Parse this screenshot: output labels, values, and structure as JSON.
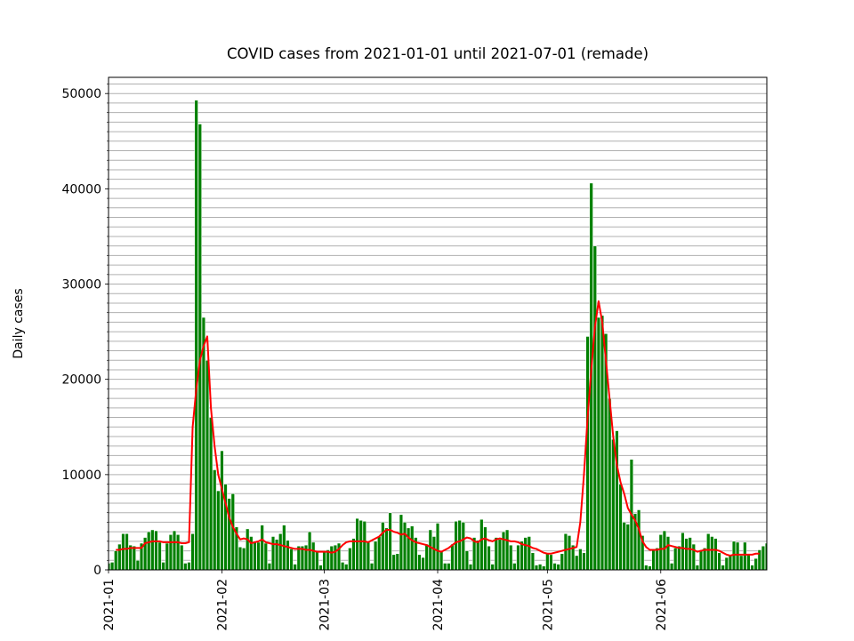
{
  "chart_data": {
    "type": "bar",
    "title": "COVID cases from 2021-01-01 until 2021-07-01 (remade)",
    "y_label": "Daily cases",
    "x": [
      "2021-01-01",
      "2021-01-02",
      "2021-01-03",
      "2021-01-04",
      "2021-01-05",
      "2021-01-06",
      "2021-01-07",
      "2021-01-08",
      "2021-01-09",
      "2021-01-10",
      "2021-01-11",
      "2021-01-12",
      "2021-01-13",
      "2021-01-14",
      "2021-01-15",
      "2021-01-16",
      "2021-01-17",
      "2021-01-18",
      "2021-01-19",
      "2021-01-20",
      "2021-01-21",
      "2021-01-22",
      "2021-01-23",
      "2021-01-24",
      "2021-01-25",
      "2021-01-26",
      "2021-01-27",
      "2021-01-28",
      "2021-01-29",
      "2021-01-30",
      "2021-01-31",
      "2021-02-01",
      "2021-02-02",
      "2021-02-03",
      "2021-02-04",
      "2021-02-05",
      "2021-02-06",
      "2021-02-07",
      "2021-02-08",
      "2021-02-09",
      "2021-02-10",
      "2021-02-11",
      "2021-02-12",
      "2021-02-13",
      "2021-02-14",
      "2021-02-15",
      "2021-02-16",
      "2021-02-17",
      "2021-02-18",
      "2021-02-19",
      "2021-02-20",
      "2021-02-21",
      "2021-02-22",
      "2021-02-23",
      "2021-02-24",
      "2021-02-25",
      "2021-02-26",
      "2021-02-27",
      "2021-02-28",
      "2021-03-01",
      "2021-03-02",
      "2021-03-03",
      "2021-03-04",
      "2021-03-05",
      "2021-03-06",
      "2021-03-07",
      "2021-03-08",
      "2021-03-09",
      "2021-03-10",
      "2021-03-11",
      "2021-03-12",
      "2021-03-13",
      "2021-03-14",
      "2021-03-15",
      "2021-03-16",
      "2021-03-17",
      "2021-03-18",
      "2021-03-19",
      "2021-03-20",
      "2021-03-21",
      "2021-03-22",
      "2021-03-23",
      "2021-03-24",
      "2021-03-25",
      "2021-03-26",
      "2021-03-27",
      "2021-03-28",
      "2021-03-29",
      "2021-03-30",
      "2021-03-31",
      "2021-04-01",
      "2021-04-02",
      "2021-04-03",
      "2021-04-04",
      "2021-04-05",
      "2021-04-06",
      "2021-04-07",
      "2021-04-08",
      "2021-04-09",
      "2021-04-10",
      "2021-04-11",
      "2021-04-12",
      "2021-04-13",
      "2021-04-14",
      "2021-04-15",
      "2021-04-16",
      "2021-04-17",
      "2021-04-18",
      "2021-04-19",
      "2021-04-20",
      "2021-04-21",
      "2021-04-22",
      "2021-04-23",
      "2021-04-24",
      "2021-04-25",
      "2021-04-26",
      "2021-04-27",
      "2021-04-28",
      "2021-04-29",
      "2021-04-30",
      "2021-05-01",
      "2021-05-02",
      "2021-05-03",
      "2021-05-04",
      "2021-05-05",
      "2021-05-06",
      "2021-05-07",
      "2021-05-08",
      "2021-05-09",
      "2021-05-10",
      "2021-05-11",
      "2021-05-12",
      "2021-05-13",
      "2021-05-14",
      "2021-05-15",
      "2021-05-16",
      "2021-05-17",
      "2021-05-18",
      "2021-05-19",
      "2021-05-20",
      "2021-05-21",
      "2021-05-22",
      "2021-05-23",
      "2021-05-24",
      "2021-05-25",
      "2021-05-26",
      "2021-05-27",
      "2021-05-28",
      "2021-05-29",
      "2021-05-30",
      "2021-05-31",
      "2021-06-01",
      "2021-06-02",
      "2021-06-03",
      "2021-06-04",
      "2021-06-05",
      "2021-06-06",
      "2021-06-07",
      "2021-06-08",
      "2021-06-09",
      "2021-06-10",
      "2021-06-11",
      "2021-06-12",
      "2021-06-13",
      "2021-06-14",
      "2021-06-15",
      "2021-06-16",
      "2021-06-17",
      "2021-06-18",
      "2021-06-19",
      "2021-06-20",
      "2021-06-21",
      "2021-06-22",
      "2021-06-23",
      "2021-06-24",
      "2021-06-25",
      "2021-06-26",
      "2021-06-27",
      "2021-06-28",
      "2021-06-29",
      "2021-06-30"
    ],
    "series": [
      {
        "type": "bar",
        "color": "green",
        "values": [
          700,
          800,
          2000,
          2700,
          3800,
          3800,
          2600,
          2500,
          1000,
          2800,
          3400,
          4000,
          4200,
          4100,
          2900,
          800,
          2800,
          3700,
          4100,
          3700,
          2600,
          700,
          800,
          3800,
          49300,
          46800,
          26500,
          22000,
          16000,
          10500,
          8300,
          12500,
          9000,
          7500,
          8000,
          4500,
          2400,
          2300,
          4300,
          3500,
          3000,
          2900,
          4700,
          2800,
          700,
          3500,
          3200,
          3800,
          4700,
          3100,
          2200,
          600,
          2500,
          2500,
          2600,
          4000,
          2900,
          1900,
          500,
          1900,
          2100,
          2500,
          2600,
          2800,
          800,
          600,
          2300,
          3300,
          5400,
          5200,
          5100,
          3000,
          700,
          3000,
          3500,
          5000,
          4400,
          6000,
          1600,
          1700,
          5800,
          5000,
          4400,
          4600,
          3400,
          1600,
          1300,
          2700,
          4200,
          3500,
          4900,
          2000,
          700,
          700,
          2700,
          5100,
          5200,
          5000,
          2000,
          600,
          3400,
          3100,
          5300,
          4500,
          2500,
          600,
          3400,
          3200,
          4000,
          4200,
          2600,
          700,
          2600,
          3000,
          3400,
          3500,
          1800,
          500,
          600,
          400,
          1700,
          1600,
          700,
          600,
          1700,
          3800,
          3600,
          2600,
          1500,
          2200,
          1800,
          24500,
          40600,
          34000,
          26500,
          26700,
          24800,
          18000,
          13700,
          14600,
          9000,
          5000,
          4800,
          11600,
          5900,
          6300,
          3600,
          500,
          400,
          2100,
          2300,
          3700,
          4100,
          3500,
          700,
          2300,
          2500,
          3900,
          3300,
          3400,
          2700,
          500,
          2100,
          2300,
          3800,
          3500,
          3300,
          1800,
          500,
          1300,
          1500,
          3000,
          2900,
          1500,
          2900,
          1700,
          500,
          1200,
          2100,
          2500,
          2800
        ]
      },
      {
        "type": "line",
        "color": "red",
        "values": [
          null,
          null,
          2100,
          2100,
          2200,
          2200,
          2300,
          2300,
          2300,
          2300,
          2800,
          2900,
          3000,
          3000,
          3000,
          2900,
          2900,
          2900,
          2900,
          2900,
          2800,
          2800,
          2900,
          15000,
          19000,
          22000,
          23500,
          24500,
          17000,
          13000,
          10000,
          8500,
          7000,
          5500,
          4500,
          3800,
          3200,
          3300,
          3200,
          2800,
          2900,
          3000,
          3200,
          2900,
          2800,
          2700,
          2700,
          2600,
          2500,
          2400,
          2300,
          2200,
          2200,
          2200,
          2100,
          2100,
          2000,
          1900,
          1900,
          1900,
          1900,
          1800,
          1900,
          2200,
          2600,
          2900,
          3000,
          3000,
          3000,
          3000,
          3000,
          2900,
          3100,
          3300,
          3500,
          3900,
          4200,
          4200,
          4000,
          3900,
          3700,
          3800,
          3400,
          3100,
          2900,
          2800,
          2700,
          2600,
          2400,
          2200,
          2000,
          1900,
          2100,
          2300,
          2600,
          2900,
          3000,
          3200,
          3400,
          3300,
          3000,
          2900,
          3200,
          3300,
          3100,
          3000,
          3200,
          3300,
          3200,
          3100,
          3000,
          3000,
          2900,
          2700,
          2600,
          2500,
          2300,
          2200,
          2000,
          1800,
          1700,
          1700,
          1800,
          1900,
          2000,
          2100,
          2200,
          2300,
          2400,
          5000,
          10000,
          16000,
          21000,
          25500,
          28200,
          26000,
          22000,
          18000,
          14000,
          11000,
          9200,
          8000,
          6500,
          5800,
          5200,
          4300,
          3000,
          2400,
          2100,
          2100,
          2100,
          2200,
          2200,
          2600,
          2500,
          2400,
          2300,
          2300,
          2200,
          2200,
          2100,
          1900,
          2000,
          2100,
          2100,
          2100,
          2100,
          2000,
          1800,
          1600,
          1500,
          1600,
          1600,
          1600,
          1600,
          1600,
          1600,
          1700,
          1700,
          null,
          null
        ]
      }
    ],
    "xlim": [
      "2021-01-01",
      "2021-06-30"
    ],
    "xticks": [
      {
        "value": "2021-01-01",
        "label": "2021-01"
      },
      {
        "value": "2021-02-01",
        "label": "2021-02"
      },
      {
        "value": "2021-03-01",
        "label": "2021-03"
      },
      {
        "value": "2021-04-01",
        "label": "2021-04"
      },
      {
        "value": "2021-05-01",
        "label": "2021-05"
      },
      {
        "value": "2021-06-01",
        "label": "2021-06"
      }
    ],
    "ylim": [
      0,
      51700
    ],
    "yticks": [
      0,
      10000,
      20000,
      30000,
      40000,
      50000
    ],
    "yminorticks": [
      0,
      1000,
      2000,
      3000,
      4000,
      5000,
      6000,
      7000,
      8000,
      9000,
      10000,
      11000,
      12000,
      13000,
      14000,
      15000,
      16000,
      17000,
      18000,
      19000,
      20000,
      21000,
      22000,
      23000,
      24000,
      25000,
      26000,
      27000,
      28000,
      29000,
      30000,
      31000,
      32000,
      33000,
      34000,
      35000,
      36000,
      37000,
      38000,
      39000,
      40000,
      41000,
      42000,
      43000,
      44000,
      45000,
      46000,
      47000,
      48000,
      49000,
      50000,
      51000
    ],
    "grid": true
  }
}
